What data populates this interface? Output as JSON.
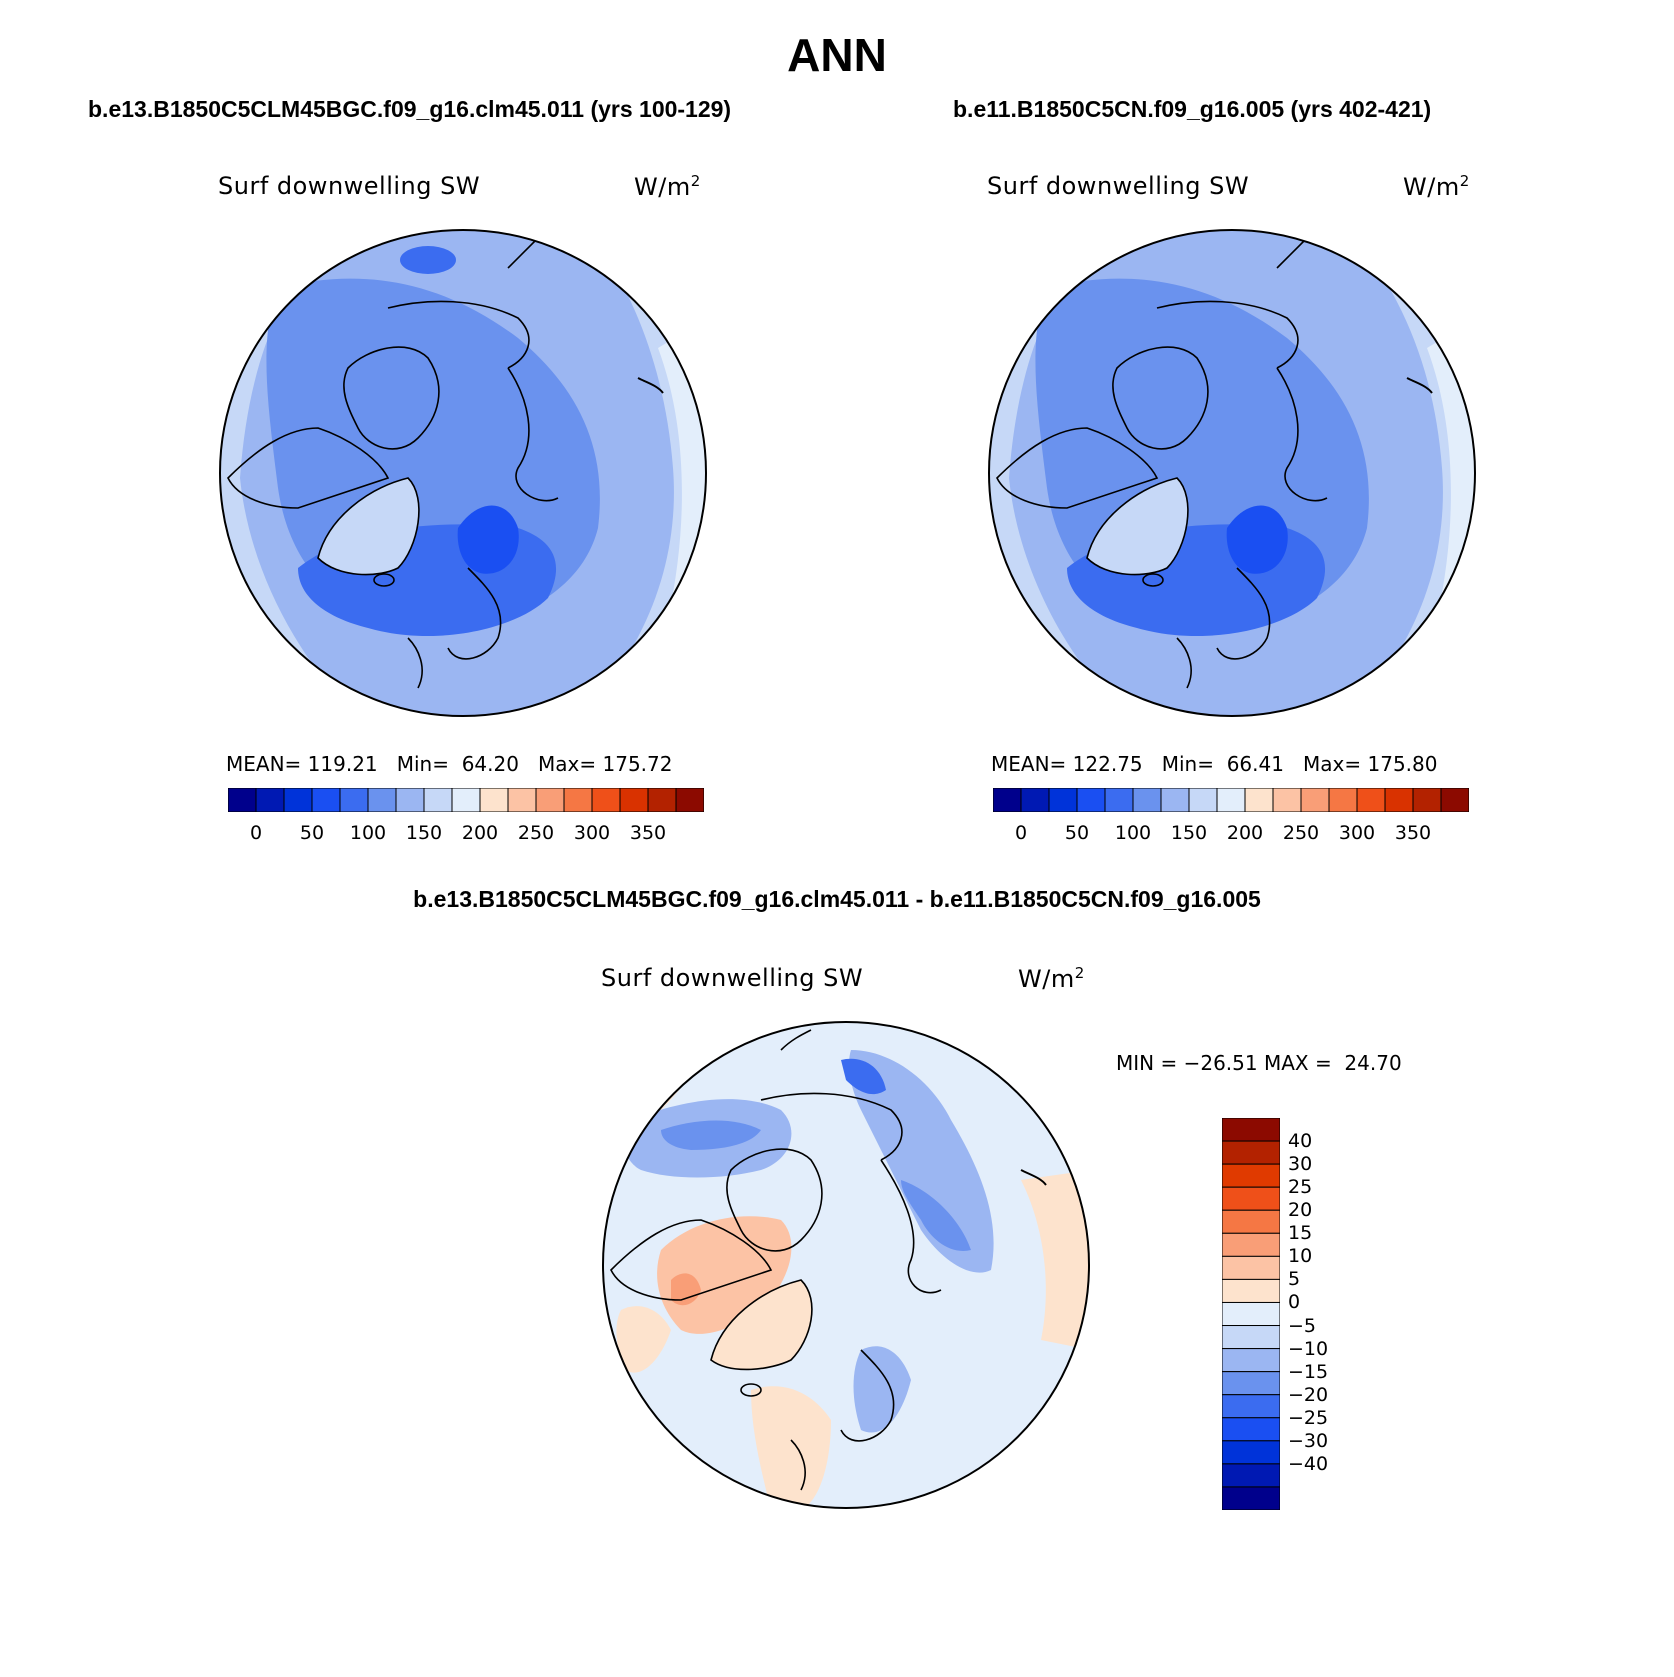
{
  "title": "ANN",
  "panels": [
    {
      "case_title": "b.e13.B1850C5CLM45BGC.f09_g16.clm45.011 (yrs 100-129)",
      "variable": "Surf downwelling SW",
      "units": "W/m",
      "units_exp": "2",
      "stats": {
        "mean_label": "MEAN=",
        "mean": "119.21",
        "min_label": "Min=",
        "min": "64.20",
        "max_label": "Max=",
        "max": "175.72"
      }
    },
    {
      "case_title": "b.e11.B1850C5CN.f09_g16.005 (yrs 402-421)",
      "variable": "Surf downwelling SW",
      "units": "W/m",
      "units_exp": "2",
      "stats": {
        "mean_label": "MEAN=",
        "mean": "122.75",
        "min_label": "Min=",
        "min": "66.41",
        "max_label": "Max=",
        "max": "175.80"
      }
    }
  ],
  "diff_panel": {
    "case_title": "b.e13.B1850C5CLM45BGC.f09_g16.clm45.011 - b.e11.B1850C5CN.f09_g16.005",
    "variable": "Surf downwelling SW",
    "units": "W/m",
    "units_exp": "2",
    "minmax": "MIN = −26.51 MAX =  24.70"
  },
  "colorbar_abs": {
    "colors": [
      "#00008c",
      "#0019b3",
      "#0033d9",
      "#1a4ff2",
      "#3b6cf0",
      "#6a92ee",
      "#9bb6f2",
      "#c6d8f7",
      "#e3eefb",
      "#fde3cd",
      "#fcc3a5",
      "#f99e77",
      "#f57744",
      "#ef5019",
      "#d93200",
      "#b32200",
      "#8c0a00"
    ],
    "labels": [
      "0",
      "50",
      "100",
      "150",
      "200",
      "250",
      "300",
      "350"
    ]
  },
  "colorbar_diff": {
    "colors": [
      "#8c0a00",
      "#b32200",
      "#e03a00",
      "#ef5019",
      "#f57744",
      "#f99e77",
      "#fcc3a5",
      "#fde3cd",
      "#e3eefb",
      "#c6d8f7",
      "#9bb6f2",
      "#6a92ee",
      "#3b6cf0",
      "#1a4ff2",
      "#0033d9",
      "#0019b3",
      "#00008c"
    ],
    "labels": [
      "40",
      "30",
      "25",
      "20",
      "15",
      "10",
      "5",
      "0",
      "−5",
      "−10",
      "−15",
      "−20",
      "−25",
      "−30",
      "−40"
    ]
  }
}
